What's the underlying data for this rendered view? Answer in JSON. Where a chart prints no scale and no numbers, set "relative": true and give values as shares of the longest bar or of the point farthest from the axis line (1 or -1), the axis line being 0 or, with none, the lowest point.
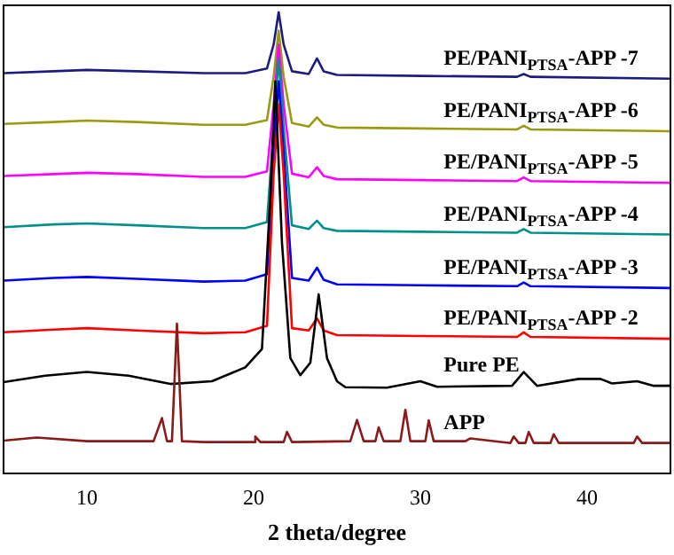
{
  "chart_data": {
    "type": "line",
    "relative": true,
    "xlabel": "2 theta/degree",
    "xlim": [
      5,
      45
    ],
    "xticks": [
      10,
      20,
      30,
      40
    ],
    "grid": false,
    "legend": false,
    "marker": "none",
    "line_style": "solid",
    "tick_labels": "x",
    "series": [
      {
        "name": "PE/PANI$_{PTSA}$-APP -7",
        "color": "#1c1c80",
        "x": [
          5,
          8,
          10,
          13,
          17,
          19.5,
          20.8,
          21.2,
          21.5,
          21.8,
          22.3,
          23.3,
          23.8,
          24.2,
          25,
          30,
          35.8,
          36.2,
          36.6,
          45
        ],
        "values": [
          0.868,
          0.872,
          0.875,
          0.872,
          0.868,
          0.868,
          0.878,
          0.93,
          1.0,
          0.93,
          0.872,
          0.866,
          0.9,
          0.872,
          0.864,
          0.862,
          0.86,
          0.866,
          0.86,
          0.856
        ]
      },
      {
        "name": "PE/PANI$_{PTSA}$-APP -6",
        "color": "#9a9a10",
        "x": [
          5,
          8,
          10,
          13,
          17,
          19.5,
          20.8,
          21.2,
          21.5,
          21.8,
          22.3,
          23.3,
          23.8,
          24.2,
          25,
          30,
          35.8,
          36.2,
          36.6,
          45
        ],
        "values": [
          0.758,
          0.762,
          0.765,
          0.762,
          0.756,
          0.756,
          0.766,
          0.86,
          0.96,
          0.86,
          0.76,
          0.752,
          0.772,
          0.756,
          0.75,
          0.748,
          0.746,
          0.754,
          0.746,
          0.742
        ]
      },
      {
        "name": "PE/PANI$_{PTSA}$-APP -5",
        "color": "#ff00ff",
        "x": [
          5,
          8,
          10,
          13,
          17,
          19.5,
          20.8,
          21.2,
          21.5,
          21.8,
          22.3,
          23.3,
          23.8,
          24.2,
          25,
          30,
          35.8,
          36.2,
          36.6,
          45
        ],
        "values": [
          0.645,
          0.649,
          0.652,
          0.649,
          0.643,
          0.643,
          0.655,
          0.8,
          0.93,
          0.8,
          0.65,
          0.642,
          0.664,
          0.645,
          0.638,
          0.636,
          0.634,
          0.642,
          0.634,
          0.63
        ]
      },
      {
        "name": "PE/PANI$_{PTSA}$-APP -4",
        "color": "#00908c",
        "x": [
          5,
          8,
          10,
          13,
          17,
          19.5,
          20.8,
          21.2,
          21.5,
          21.8,
          22.3,
          23.3,
          23.8,
          24.2,
          25,
          30,
          35.8,
          36.2,
          36.6,
          45
        ],
        "values": [
          0.534,
          0.54,
          0.542,
          0.538,
          0.532,
          0.532,
          0.545,
          0.75,
          0.9,
          0.75,
          0.538,
          0.53,
          0.548,
          0.532,
          0.526,
          0.524,
          0.522,
          0.53,
          0.522,
          0.518
        ]
      },
      {
        "name": "PE/PANI$_{PTSA}$-APP -3",
        "color": "#0000ff",
        "x": [
          5,
          8,
          10,
          13,
          17,
          19.5,
          20.8,
          21.2,
          21.5,
          21.8,
          22.3,
          23.3,
          23.8,
          24.2,
          25,
          30,
          35.8,
          36.2,
          36.6,
          45
        ],
        "values": [
          0.418,
          0.424,
          0.426,
          0.422,
          0.416,
          0.418,
          0.432,
          0.7,
          0.85,
          0.7,
          0.424,
          0.418,
          0.446,
          0.42,
          0.41,
          0.408,
          0.406,
          0.414,
          0.406,
          0.402
        ]
      },
      {
        "name": "PE/PANI$_{PTSA}$-APP -2",
        "color": "#ff0000",
        "x": [
          5,
          8,
          10,
          13,
          17,
          19.5,
          20.8,
          21.2,
          21.5,
          21.8,
          22.3,
          23.3,
          23.8,
          24.2,
          25,
          30,
          35.8,
          36.2,
          36.6,
          45
        ],
        "values": [
          0.306,
          0.312,
          0.315,
          0.31,
          0.304,
          0.306,
          0.32,
          0.65,
          0.8,
          0.65,
          0.315,
          0.31,
          0.336,
          0.31,
          0.3,
          0.298,
          0.296,
          0.306,
          0.296,
          0.292
        ]
      },
      {
        "name": "Pure PE",
        "color": "#000000",
        "x": [
          5,
          7.5,
          10,
          12.5,
          15,
          17.5,
          19.5,
          20.5,
          21,
          21.3,
          21.7,
          22.2,
          22.8,
          23.4,
          23.9,
          24.4,
          25,
          25.5,
          28,
          30,
          31,
          35.5,
          36.2,
          37,
          39.5,
          40.8,
          41.5,
          43,
          44,
          45
        ],
        "values": [
          0.198,
          0.212,
          0.22,
          0.212,
          0.194,
          0.2,
          0.23,
          0.27,
          0.6,
          0.85,
          0.5,
          0.25,
          0.213,
          0.24,
          0.388,
          0.25,
          0.2,
          0.187,
          0.186,
          0.2,
          0.188,
          0.19,
          0.22,
          0.19,
          0.205,
          0.205,
          0.195,
          0.2,
          0.19,
          0.19
        ]
      },
      {
        "name": "APP",
        "color": "#8b1a1a",
        "x": [
          5,
          7,
          10,
          14,
          14.5,
          14.8,
          15.1,
          15.4,
          15.7,
          17,
          20,
          20.1,
          20.4,
          21.8,
          22,
          22.3,
          25.8,
          26.2,
          26.6,
          27.3,
          27.5,
          27.8,
          28.8,
          29.1,
          29.4,
          30.3,
          30.5,
          30.8,
          32.7,
          33,
          35.4,
          35.6,
          35.9,
          36.3,
          36.5,
          36.8,
          37.8,
          38,
          38.3,
          42.8,
          43,
          43.3,
          45
        ],
        "values": [
          0.071,
          0.078,
          0.07,
          0.07,
          0.12,
          0.07,
          0.07,
          0.325,
          0.07,
          0.068,
          0.068,
          0.08,
          0.068,
          0.068,
          0.09,
          0.068,
          0.07,
          0.116,
          0.07,
          0.07,
          0.1,
          0.07,
          0.07,
          0.138,
          0.07,
          0.07,
          0.115,
          0.07,
          0.07,
          0.076,
          0.066,
          0.08,
          0.066,
          0.066,
          0.09,
          0.066,
          0.066,
          0.085,
          0.066,
          0.066,
          0.08,
          0.066,
          0.066
        ]
      }
    ]
  }
}
